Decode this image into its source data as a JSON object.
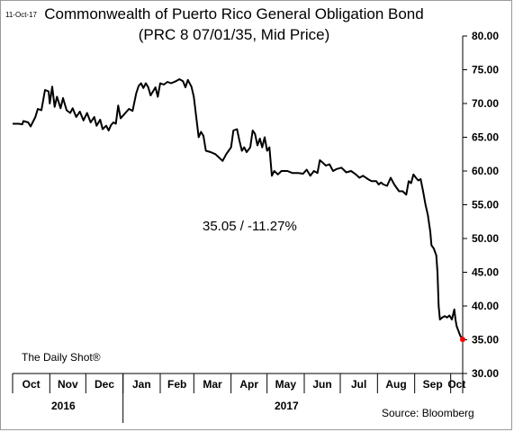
{
  "header": {
    "date_stamp": "11-Oct-17",
    "title_line1": "Commonwealth of Puerto Rico General Obligation Bond",
    "title_line2": "(PRC 8 07/01/35, Mid Price)"
  },
  "annotation": "35.05  /  -11.27%",
  "brand": "The Daily Shot®",
  "source": "Source: Bloomberg",
  "years": [
    "2016",
    "2017"
  ],
  "colors": {
    "line": "#000000",
    "last_point": "#ff0000",
    "axis": "#000000"
  },
  "chart_data": {
    "type": "line",
    "title": "Commonwealth of Puerto Rico General Obligation Bond (PRC 8 07/01/35, Mid Price)",
    "xlabel": "",
    "ylabel": "",
    "ylim": [
      30,
      80
    ],
    "yticks": [
      "30.00",
      "35.00",
      "40.00",
      "45.00",
      "50.00",
      "55.00",
      "60.00",
      "65.00",
      "70.00",
      "75.00",
      "80.00"
    ],
    "yaxis_side": "right",
    "grid": false,
    "legend": "none",
    "xlim": [
      "2016-10-01",
      "2017-10-11"
    ],
    "month_labels": [
      {
        "label": "Oct",
        "date": "2016-10-01"
      },
      {
        "label": "Nov",
        "date": "2016-11-01"
      },
      {
        "label": "Dec",
        "date": "2016-12-01"
      },
      {
        "label": "Jan",
        "date": "2017-01-01"
      },
      {
        "label": "Feb",
        "date": "2017-02-01"
      },
      {
        "label": "Mar",
        "date": "2017-03-01"
      },
      {
        "label": "Apr",
        "date": "2017-04-01"
      },
      {
        "label": "May",
        "date": "2017-05-01"
      },
      {
        "label": "Jun",
        "date": "2017-06-01"
      },
      {
        "label": "Jul",
        "date": "2017-07-01"
      },
      {
        "label": "Aug",
        "date": "2017-08-01"
      },
      {
        "label": "Sep",
        "date": "2017-09-01"
      },
      {
        "label": "Oct",
        "date": "2017-10-01"
      }
    ],
    "series": [
      {
        "points": [
          [
            "2016-10-01",
            67.0
          ],
          [
            "2016-10-06",
            67.0
          ],
          [
            "2016-10-09",
            66.9
          ],
          [
            "2016-10-10",
            67.4
          ],
          [
            "2016-10-14",
            67.2
          ],
          [
            "2016-10-16",
            66.6
          ],
          [
            "2016-10-20",
            68.0
          ],
          [
            "2016-10-22",
            69.2
          ],
          [
            "2016-10-25",
            69.0
          ],
          [
            "2016-10-28",
            72.0
          ],
          [
            "2016-10-31",
            71.8
          ],
          [
            "2016-11-01",
            70.0
          ],
          [
            "2016-11-03",
            72.5
          ],
          [
            "2016-11-05",
            69.5
          ],
          [
            "2016-11-07",
            71.0
          ],
          [
            "2016-11-10",
            69.3
          ],
          [
            "2016-11-12",
            70.8
          ],
          [
            "2016-11-15",
            69.0
          ],
          [
            "2016-11-18",
            68.6
          ],
          [
            "2016-11-20",
            69.3
          ],
          [
            "2016-11-23",
            68.0
          ],
          [
            "2016-11-26",
            68.8
          ],
          [
            "2016-11-29",
            67.5
          ],
          [
            "2016-12-02",
            68.6
          ],
          [
            "2016-12-05",
            67.2
          ],
          [
            "2016-12-08",
            68.0
          ],
          [
            "2016-12-10",
            66.7
          ],
          [
            "2016-12-13",
            67.6
          ],
          [
            "2016-12-15",
            66.2
          ],
          [
            "2016-12-18",
            66.7
          ],
          [
            "2016-12-20",
            66.0
          ],
          [
            "2016-12-22",
            66.8
          ],
          [
            "2016-12-24",
            67.2
          ],
          [
            "2016-12-26",
            67.0
          ],
          [
            "2016-12-28",
            69.7
          ],
          [
            "2016-12-30",
            67.8
          ],
          [
            "2017-01-03",
            68.6
          ],
          [
            "2017-01-06",
            69.2
          ],
          [
            "2017-01-09",
            68.9
          ],
          [
            "2017-01-12",
            71.5
          ],
          [
            "2017-01-14",
            72.6
          ],
          [
            "2017-01-16",
            73.0
          ],
          [
            "2017-01-18",
            72.3
          ],
          [
            "2017-01-20",
            73.0
          ],
          [
            "2017-01-22",
            72.4
          ],
          [
            "2017-01-24",
            71.2
          ],
          [
            "2017-01-26",
            71.8
          ],
          [
            "2017-01-28",
            72.4
          ],
          [
            "2017-01-30",
            71.0
          ],
          [
            "2017-02-01",
            73.0
          ],
          [
            "2017-02-04",
            72.8
          ],
          [
            "2017-02-07",
            73.2
          ],
          [
            "2017-02-10",
            73.0
          ],
          [
            "2017-02-14",
            73.3
          ],
          [
            "2017-02-17",
            73.6
          ],
          [
            "2017-02-20",
            73.3
          ],
          [
            "2017-02-22",
            72.4
          ],
          [
            "2017-02-24",
            73.5
          ],
          [
            "2017-02-27",
            72.5
          ],
          [
            "2017-03-01",
            71.0
          ],
          [
            "2017-03-03",
            68.0
          ],
          [
            "2017-03-05",
            65.0
          ],
          [
            "2017-03-07",
            65.8
          ],
          [
            "2017-03-09",
            65.2
          ],
          [
            "2017-03-11",
            63.0
          ],
          [
            "2017-03-15",
            62.8
          ],
          [
            "2017-03-19",
            62.5
          ],
          [
            "2017-03-22",
            62.0
          ],
          [
            "2017-03-25",
            61.5
          ],
          [
            "2017-03-28",
            62.5
          ],
          [
            "2017-03-30",
            63.0
          ],
          [
            "2017-04-01",
            63.5
          ],
          [
            "2017-04-03",
            66.0
          ],
          [
            "2017-04-06",
            66.2
          ],
          [
            "2017-04-08",
            64.5
          ],
          [
            "2017-04-10",
            63.0
          ],
          [
            "2017-04-12",
            63.5
          ],
          [
            "2017-04-14",
            62.8
          ],
          [
            "2017-04-17",
            63.5
          ],
          [
            "2017-04-19",
            66.0
          ],
          [
            "2017-04-21",
            65.5
          ],
          [
            "2017-04-23",
            63.8
          ],
          [
            "2017-04-25",
            64.8
          ],
          [
            "2017-04-27",
            63.5
          ],
          [
            "2017-04-29",
            65.0
          ],
          [
            "2017-05-01",
            63.0
          ],
          [
            "2017-05-03",
            63.5
          ],
          [
            "2017-05-05",
            59.3
          ],
          [
            "2017-05-07",
            60.0
          ],
          [
            "2017-05-10",
            59.5
          ],
          [
            "2017-05-13",
            60.0
          ],
          [
            "2017-05-18",
            60.0
          ],
          [
            "2017-05-22",
            59.7
          ],
          [
            "2017-05-27",
            59.7
          ],
          [
            "2017-05-31",
            59.6
          ],
          [
            "2017-06-03",
            60.2
          ],
          [
            "2017-06-06",
            59.3
          ],
          [
            "2017-06-09",
            60.0
          ],
          [
            "2017-06-12",
            59.7
          ],
          [
            "2017-06-14",
            61.6
          ],
          [
            "2017-06-16",
            61.3
          ],
          [
            "2017-06-19",
            60.8
          ],
          [
            "2017-06-22",
            61.0
          ],
          [
            "2017-06-25",
            60.0
          ],
          [
            "2017-06-28",
            60.3
          ],
          [
            "2017-07-02",
            60.5
          ],
          [
            "2017-07-06",
            59.8
          ],
          [
            "2017-07-10",
            60.0
          ],
          [
            "2017-07-14",
            59.5
          ],
          [
            "2017-07-17",
            59.0
          ],
          [
            "2017-07-20",
            59.3
          ],
          [
            "2017-07-24",
            58.8
          ],
          [
            "2017-07-27",
            58.5
          ],
          [
            "2017-07-31",
            58.5
          ],
          [
            "2017-08-02",
            58.0
          ],
          [
            "2017-08-04",
            58.3
          ],
          [
            "2017-08-06",
            58.0
          ],
          [
            "2017-08-09",
            57.8
          ],
          [
            "2017-08-12",
            59.0
          ],
          [
            "2017-08-15",
            58.0
          ],
          [
            "2017-08-19",
            57.0
          ],
          [
            "2017-08-22",
            57.0
          ],
          [
            "2017-08-25",
            56.5
          ],
          [
            "2017-08-27",
            58.5
          ],
          [
            "2017-08-29",
            58.2
          ],
          [
            "2017-08-31",
            59.5
          ],
          [
            "2017-09-02",
            59.0
          ],
          [
            "2017-09-04",
            58.6
          ],
          [
            "2017-09-06",
            58.8
          ],
          [
            "2017-09-08",
            57.0
          ],
          [
            "2017-09-10",
            55.0
          ],
          [
            "2017-09-12",
            53.5
          ],
          [
            "2017-09-14",
            51.0
          ],
          [
            "2017-09-15",
            49.0
          ],
          [
            "2017-09-17",
            48.5
          ],
          [
            "2017-09-18",
            48.0
          ],
          [
            "2017-09-19",
            47.5
          ],
          [
            "2017-09-20",
            45.0
          ],
          [
            "2017-09-21",
            40.0
          ],
          [
            "2017-09-22",
            38.0
          ],
          [
            "2017-09-24",
            38.3
          ],
          [
            "2017-09-26",
            38.5
          ],
          [
            "2017-09-28",
            38.3
          ],
          [
            "2017-09-30",
            38.6
          ],
          [
            "2017-10-02",
            38.0
          ],
          [
            "2017-10-04",
            39.5
          ],
          [
            "2017-10-05",
            38.0
          ],
          [
            "2017-10-06",
            37.0
          ],
          [
            "2017-10-09",
            35.6
          ],
          [
            "2017-10-11",
            35.05
          ]
        ]
      }
    ],
    "last_point": {
      "date": "2017-10-11",
      "value": 35.05
    }
  }
}
